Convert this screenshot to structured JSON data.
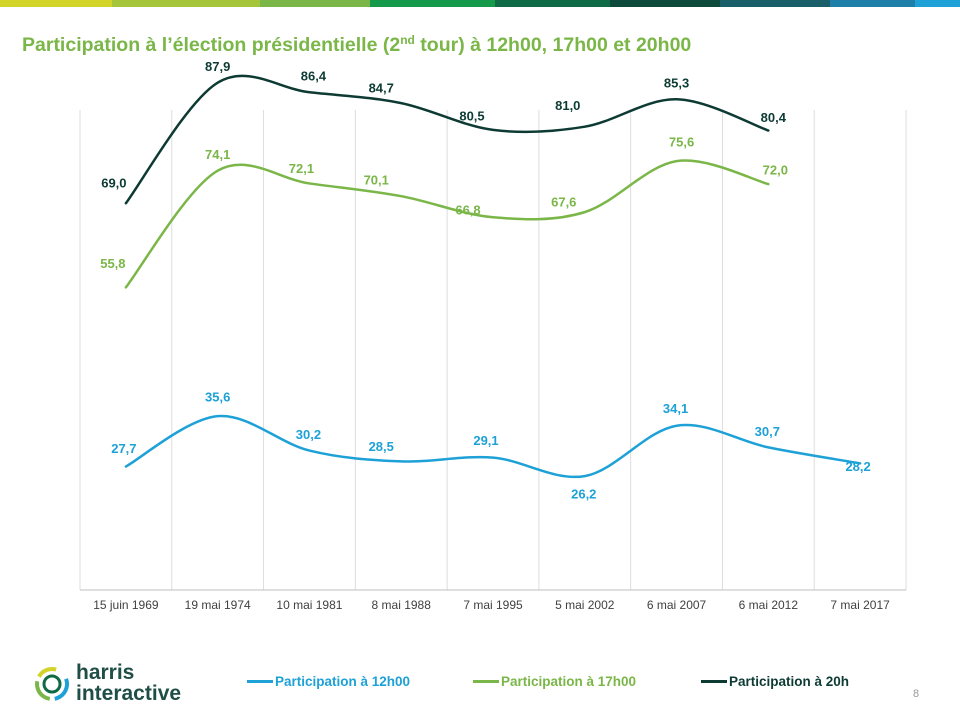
{
  "title": {
    "before": "Participation à l’élection présidentielle (2",
    "sup": "nd",
    "after": " tour) à 12h00, 17h00 et 20h00"
  },
  "colors": {
    "title": "#7ab648",
    "series_12h": "#1da1d6",
    "series_17h": "#7ab648",
    "series_20h": "#0d3b33",
    "grid": "#dddddd",
    "axis": "#bfbfbf",
    "tick_text": "#404040",
    "topbar": [
      "#d2d42a",
      "#a5c53a",
      "#7ab648",
      "#159a4c",
      "#0e6b45",
      "#0d4a3c",
      "#1a5e6a",
      "#1e7fa8",
      "#1da1d6"
    ]
  },
  "chart_data": {
    "type": "line",
    "title": "Participation à l’élection présidentielle (2nd tour) à 12h00, 17h00 et 20h00",
    "xlabel": "",
    "ylabel": "",
    "ylim": [
      0,
      100
    ],
    "grid": "vertical",
    "legend_position": "bottom",
    "categories": [
      "15 juin 1969",
      "19 mai 1974",
      "10 mai 1981",
      "8 mai 1988",
      "7 mai 1995",
      "5 mai 2002",
      "6 mai 2007",
      "6 mai 2012",
      "7 mai 2017"
    ],
    "series": [
      {
        "name": "Participation à 12h00",
        "values": [
          27.7,
          35.6,
          30.2,
          28.5,
          29.1,
          26.2,
          34.1,
          30.7,
          28.2
        ],
        "labels": [
          "27,7",
          "35,6",
          "30,2",
          "28,5",
          "29,1",
          "26,2",
          "34,1",
          "30,7",
          "28,2"
        ]
      },
      {
        "name": "Participation à 17h00",
        "values": [
          55.8,
          74.1,
          72.1,
          70.1,
          66.8,
          67.6,
          75.6,
          72.0,
          null
        ],
        "labels": [
          "55,8",
          "74,1",
          "72,1",
          "70,1",
          "66,8",
          "67,6",
          "75,6",
          "72,0",
          null
        ]
      },
      {
        "name": "Participation à 20h",
        "values": [
          69.0,
          87.9,
          86.4,
          84.7,
          80.5,
          81.0,
          85.3,
          80.4,
          null
        ],
        "labels": [
          "69,0",
          "87,9",
          "86,4",
          "84,7",
          "80,5",
          "81,0",
          "85,3",
          "80,4",
          null
        ]
      }
    ]
  },
  "legend": {
    "items": [
      "Participation à 12h00",
      "Participation à 17h00",
      "Participation à 20h"
    ]
  },
  "logo": {
    "line1": "harris",
    "line2": "interactive"
  },
  "page_number": "8"
}
